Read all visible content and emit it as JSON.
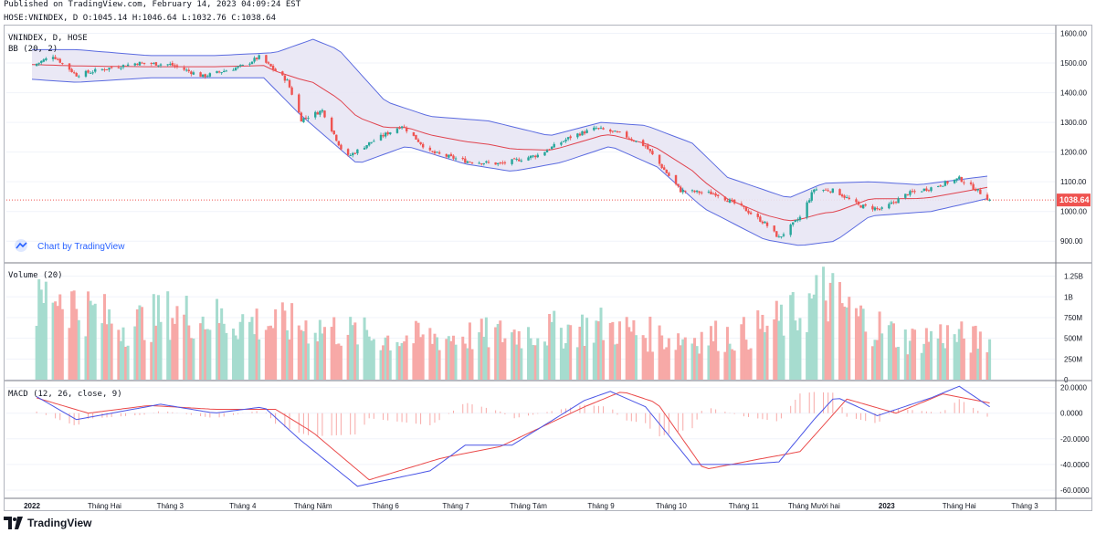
{
  "header": {
    "published": "Published on TradingView.com, February 14, 2023 04:09:24 EST",
    "symbol_line": "HOSE:VNINDEX, D O:1045.14 H:1046.64 L:1032.76 C:1038.64"
  },
  "footer": {
    "brand": "TradingView"
  },
  "watermark": {
    "text": "Chart by TradingView"
  },
  "colors": {
    "up": "#26a69a",
    "down": "#ef5350",
    "bb_band": "#5b6be0",
    "bb_fill": "#e8e6f4",
    "bb_basis": "#e0444f",
    "macd_line": "#4a55e6",
    "signal_line": "#ea4a4a",
    "price_tag": "#ef5350",
    "vol_up": "#a6dccf",
    "vol_down": "#f7a9a7"
  },
  "chart_data": [
    {
      "type": "candlestick",
      "panel": "price",
      "title": "VNINDEX, D, HOSE",
      "indicator_label": "BB (20, 2)",
      "ylim": [
        830,
        1620
      ],
      "y_ticks": [
        "1600.00",
        "1500.00",
        "1400.00",
        "1300.00",
        "1200.00",
        "1100.00",
        "1000.00",
        "900.00"
      ],
      "last_price": "1038.64",
      "anchors": [
        {
          "date": "2022-01-01",
          "close": 1490
        },
        {
          "date": "2022-01-10",
          "close": 1525
        },
        {
          "date": "2022-01-20",
          "close": 1460
        },
        {
          "date": "2022-02-01",
          "close": 1480
        },
        {
          "date": "2022-02-15",
          "close": 1500
        },
        {
          "date": "2022-03-01",
          "close": 1495
        },
        {
          "date": "2022-03-15",
          "close": 1455
        },
        {
          "date": "2022-04-01",
          "close": 1490
        },
        {
          "date": "2022-04-08",
          "close": 1520
        },
        {
          "date": "2022-04-20",
          "close": 1440
        },
        {
          "date": "2022-04-26",
          "close": 1310
        },
        {
          "date": "2022-05-05",
          "close": 1340
        },
        {
          "date": "2022-05-15",
          "close": 1180
        },
        {
          "date": "2022-05-25",
          "close": 1230
        },
        {
          "date": "2022-06-08",
          "close": 1290
        },
        {
          "date": "2022-06-20",
          "close": 1200
        },
        {
          "date": "2022-07-05",
          "close": 1170
        },
        {
          "date": "2022-07-20",
          "close": 1160
        },
        {
          "date": "2022-08-05",
          "close": 1190
        },
        {
          "date": "2022-08-20",
          "close": 1255
        },
        {
          "date": "2022-08-30",
          "close": 1280
        },
        {
          "date": "2022-09-10",
          "close": 1260
        },
        {
          "date": "2022-09-20",
          "close": 1220
        },
        {
          "date": "2022-09-28",
          "close": 1140
        },
        {
          "date": "2022-10-05",
          "close": 1070
        },
        {
          "date": "2022-10-20",
          "close": 1060
        },
        {
          "date": "2022-11-01",
          "close": 1010
        },
        {
          "date": "2022-11-10",
          "close": 960
        },
        {
          "date": "2022-11-16",
          "close": 911
        },
        {
          "date": "2022-11-25",
          "close": 980
        },
        {
          "date": "2022-12-01",
          "close": 1075
        },
        {
          "date": "2022-12-10",
          "close": 1070
        },
        {
          "date": "2022-12-20",
          "close": 1020
        },
        {
          "date": "2022-12-30",
          "close": 1007
        },
        {
          "date": "2023-01-10",
          "close": 1060
        },
        {
          "date": "2023-01-20",
          "close": 1080
        },
        {
          "date": "2023-02-01",
          "close": 1111
        },
        {
          "date": "2023-02-08",
          "close": 1075
        },
        {
          "date": "2023-02-14",
          "close": 1038.64
        }
      ],
      "bollinger_upper": [
        {
          "date": "2022-01-01",
          "value": 1545
        },
        {
          "date": "2022-01-20",
          "value": 1545
        },
        {
          "date": "2022-02-20",
          "value": 1525
        },
        {
          "date": "2022-03-20",
          "value": 1525
        },
        {
          "date": "2022-04-15",
          "value": 1535
        },
        {
          "date": "2022-05-01",
          "value": 1580
        },
        {
          "date": "2022-05-12",
          "value": 1545
        },
        {
          "date": "2022-06-01",
          "value": 1370
        },
        {
          "date": "2022-06-20",
          "value": 1320
        },
        {
          "date": "2022-07-15",
          "value": 1305
        },
        {
          "date": "2022-08-10",
          "value": 1255
        },
        {
          "date": "2022-09-01",
          "value": 1300
        },
        {
          "date": "2022-09-20",
          "value": 1290
        },
        {
          "date": "2022-10-10",
          "value": 1230
        },
        {
          "date": "2022-10-25",
          "value": 1115
        },
        {
          "date": "2022-11-20",
          "value": 1045
        },
        {
          "date": "2022-12-05",
          "value": 1095
        },
        {
          "date": "2022-12-25",
          "value": 1100
        },
        {
          "date": "2023-01-15",
          "value": 1090
        },
        {
          "date": "2023-02-14",
          "value": 1120
        }
      ],
      "bollinger_lower": [
        {
          "date": "2022-01-01",
          "value": 1445
        },
        {
          "date": "2022-01-20",
          "value": 1435
        },
        {
          "date": "2022-02-20",
          "value": 1450
        },
        {
          "date": "2022-03-20",
          "value": 1450
        },
        {
          "date": "2022-04-10",
          "value": 1450
        },
        {
          "date": "2022-04-25",
          "value": 1330
        },
        {
          "date": "2022-05-20",
          "value": 1160
        },
        {
          "date": "2022-06-10",
          "value": 1220
        },
        {
          "date": "2022-07-05",
          "value": 1160
        },
        {
          "date": "2022-07-25",
          "value": 1135
        },
        {
          "date": "2022-08-15",
          "value": 1165
        },
        {
          "date": "2022-09-05",
          "value": 1220
        },
        {
          "date": "2022-09-25",
          "value": 1150
        },
        {
          "date": "2022-10-15",
          "value": 1010
        },
        {
          "date": "2022-11-10",
          "value": 905
        },
        {
          "date": "2022-11-25",
          "value": 885
        },
        {
          "date": "2022-12-10",
          "value": 900
        },
        {
          "date": "2022-12-25",
          "value": 985
        },
        {
          "date": "2023-01-20",
          "value": 1000
        },
        {
          "date": "2023-02-14",
          "value": 1045
        }
      ]
    },
    {
      "type": "bar",
      "panel": "volume",
      "title": "Volume (20)",
      "ylim": [
        0,
        1400000000
      ],
      "y_ticks": [
        "1.25B",
        "1B",
        "750M",
        "500M",
        "250M",
        "0"
      ],
      "anchors": [
        {
          "date": "2022-01-01",
          "value": 800000000
        },
        {
          "date": "2022-01-10",
          "value": 1100000000
        },
        {
          "date": "2022-01-20",
          "value": 900000000
        },
        {
          "date": "2022-02-10",
          "value": 650000000
        },
        {
          "date": "2022-03-01",
          "value": 800000000
        },
        {
          "date": "2022-04-01",
          "value": 700000000
        },
        {
          "date": "2022-05-01",
          "value": 650000000
        },
        {
          "date": "2022-06-01",
          "value": 500000000
        },
        {
          "date": "2022-07-01",
          "value": 520000000
        },
        {
          "date": "2022-08-01",
          "value": 570000000
        },
        {
          "date": "2022-09-01",
          "value": 650000000
        },
        {
          "date": "2022-10-01",
          "value": 500000000
        },
        {
          "date": "2022-11-01",
          "value": 550000000
        },
        {
          "date": "2022-11-25",
          "value": 800000000
        },
        {
          "date": "2022-12-05",
          "value": 1050000000
        },
        {
          "date": "2022-12-20",
          "value": 750000000
        },
        {
          "date": "2023-01-10",
          "value": 480000000
        },
        {
          "date": "2023-01-25",
          "value": 550000000
        },
        {
          "date": "2023-02-14",
          "value": 450000000
        }
      ]
    },
    {
      "type": "line",
      "panel": "macd",
      "title": "MACD (12, 26, close, 9)",
      "ylim": [
        -65,
        24
      ],
      "y_ticks": [
        "20.0000",
        "0.0000",
        "-20.0000",
        "-40.0000",
        "-60.0000"
      ],
      "macd": [
        {
          "date": "2022-01-01",
          "value": 15
        },
        {
          "date": "2022-01-20",
          "value": -5
        },
        {
          "date": "2022-02-10",
          "value": 2
        },
        {
          "date": "2022-02-25",
          "value": 7
        },
        {
          "date": "2022-03-20",
          "value": 0
        },
        {
          "date": "2022-04-10",
          "value": 5
        },
        {
          "date": "2022-04-25",
          "value": -20
        },
        {
          "date": "2022-05-20",
          "value": -57
        },
        {
          "date": "2022-06-20",
          "value": -45
        },
        {
          "date": "2022-07-05",
          "value": -25
        },
        {
          "date": "2022-07-25",
          "value": -25
        },
        {
          "date": "2022-08-25",
          "value": 10
        },
        {
          "date": "2022-09-05",
          "value": 17
        },
        {
          "date": "2022-09-20",
          "value": 5
        },
        {
          "date": "2022-10-10",
          "value": -40
        },
        {
          "date": "2022-11-01",
          "value": -40
        },
        {
          "date": "2022-11-16",
          "value": -38
        },
        {
          "date": "2022-12-01",
          "value": -5
        },
        {
          "date": "2022-12-10",
          "value": 13
        },
        {
          "date": "2022-12-28",
          "value": -2
        },
        {
          "date": "2023-01-20",
          "value": 12
        },
        {
          "date": "2023-02-01",
          "value": 21
        },
        {
          "date": "2023-02-14",
          "value": 5
        }
      ],
      "signal": [
        {
          "date": "2022-01-01",
          "value": 13
        },
        {
          "date": "2022-01-25",
          "value": 0
        },
        {
          "date": "2022-02-20",
          "value": 6
        },
        {
          "date": "2022-03-20",
          "value": 3
        },
        {
          "date": "2022-04-15",
          "value": 3
        },
        {
          "date": "2022-05-01",
          "value": -15
        },
        {
          "date": "2022-05-25",
          "value": -52
        },
        {
          "date": "2022-06-25",
          "value": -35
        },
        {
          "date": "2022-07-20",
          "value": -26
        },
        {
          "date": "2022-08-25",
          "value": 5
        },
        {
          "date": "2022-09-10",
          "value": 17
        },
        {
          "date": "2022-09-25",
          "value": 8
        },
        {
          "date": "2022-10-15",
          "value": -44
        },
        {
          "date": "2022-11-10",
          "value": -35
        },
        {
          "date": "2022-11-25",
          "value": -30
        },
        {
          "date": "2022-12-15",
          "value": 11
        },
        {
          "date": "2023-01-05",
          "value": 0
        },
        {
          "date": "2023-01-25",
          "value": 15
        },
        {
          "date": "2023-02-14",
          "value": 8
        }
      ]
    },
    {
      "type": "axis",
      "panel": "time",
      "x_ticks": [
        {
          "date": "2022-01-01",
          "label": "2022"
        },
        {
          "date": "2022-02-01",
          "label": "Tháng Hai"
        },
        {
          "date": "2022-03-01",
          "label": "Tháng 3"
        },
        {
          "date": "2022-04-01",
          "label": "Tháng 4"
        },
        {
          "date": "2022-05-01",
          "label": "Tháng Năm"
        },
        {
          "date": "2022-06-01",
          "label": "Tháng 6"
        },
        {
          "date": "2022-07-01",
          "label": "Tháng 7"
        },
        {
          "date": "2022-08-01",
          "label": "Tháng Tám"
        },
        {
          "date": "2022-09-01",
          "label": "Tháng 9"
        },
        {
          "date": "2022-10-01",
          "label": "Tháng 10"
        },
        {
          "date": "2022-11-01",
          "label": "Tháng 11"
        },
        {
          "date": "2022-12-01",
          "label": "Tháng Mười hai"
        },
        {
          "date": "2023-01-01",
          "label": "2023"
        },
        {
          "date": "2023-02-01",
          "label": "Tháng Hai"
        },
        {
          "date": "2023-03-01",
          "label": "Tháng 3"
        }
      ]
    }
  ]
}
